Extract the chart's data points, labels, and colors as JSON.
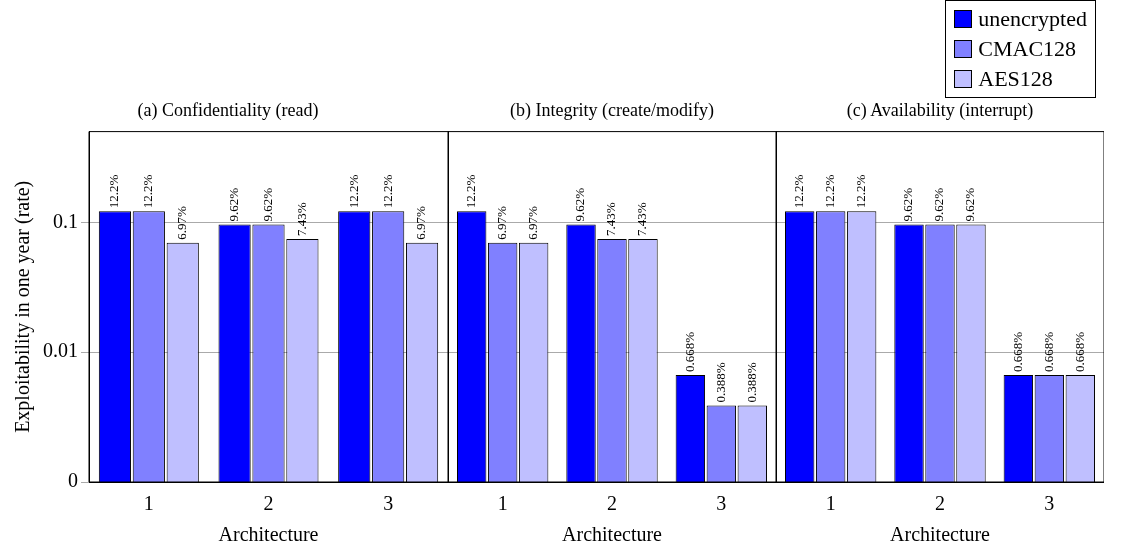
{
  "chart_data": [
    {
      "type": "bar",
      "title": "(a) Confidentiality (read)",
      "xlabel": "Architecture",
      "ylabel": "Exploitability in one year (rate)",
      "categories": [
        "1",
        "2",
        "3"
      ],
      "log": "y",
      "grid": "y",
      "ylim": [
        0.001,
        0.5
      ],
      "yticks": [
        {
          "value": 0.001,
          "label": "0"
        },
        0.01,
        0.1
      ],
      "series": [
        {
          "color": "#0000ff",
          "values": [
            0.122,
            0.0962,
            0.122
          ],
          "value_labels": [
            "12.2%",
            "9.62%",
            "12.2%"
          ]
        },
        {
          "color": "#8080ff",
          "values": [
            0.122,
            0.0962,
            0.122
          ],
          "value_labels": [
            "12.2%",
            "9.62%",
            "12.2%"
          ]
        },
        {
          "color": "#bfbfff",
          "values": [
            0.0697,
            0.0743,
            0.0697
          ],
          "value_labels": [
            "6.97%",
            "7.43%",
            "6.97%"
          ]
        }
      ]
    },
    {
      "type": "bar",
      "title": "(b) Integrity (create/modify)",
      "xlabel": "Architecture",
      "categories": [
        "1",
        "2",
        "3"
      ],
      "log": "y",
      "grid": "y",
      "ylim": [
        0.001,
        0.5
      ],
      "yticks": [
        0.001,
        0.01,
        0.1
      ],
      "tick_labels": "x",
      "series": [
        {
          "color": "#0000ff",
          "values": [
            0.122,
            0.0962,
            0.00668
          ],
          "value_labels": [
            "12.2%",
            "9.62%",
            "0.668%"
          ]
        },
        {
          "color": "#8080ff",
          "values": [
            0.0697,
            0.0743,
            0.00388
          ],
          "value_labels": [
            "6.97%",
            "7.43%",
            "0.388%"
          ]
        },
        {
          "color": "#bfbfff",
          "values": [
            0.0697,
            0.0743,
            0.00388
          ],
          "value_labels": [
            "6.97%",
            "7.43%",
            "0.388%"
          ]
        }
      ]
    },
    {
      "type": "bar",
      "title": "(c) Availability (interrupt)",
      "xlabel": "Architecture",
      "categories": [
        "1",
        "2",
        "3"
      ],
      "log": "y",
      "grid": "y",
      "ylim": [
        0.001,
        0.5
      ],
      "yticks": [
        0.001,
        0.01,
        0.1
      ],
      "tick_labels": "x",
      "legend": "top right",
      "series": [
        {
          "name": "unencrypted",
          "color": "#0000ff",
          "values": [
            0.122,
            0.0962,
            0.00668
          ],
          "value_labels": [
            "12.2%",
            "9.62%",
            "0.668%"
          ]
        },
        {
          "name": "CMAC128",
          "color": "#8080ff",
          "values": [
            0.122,
            0.0962,
            0.00668
          ],
          "value_labels": [
            "12.2%",
            "9.62%",
            "0.668%"
          ]
        },
        {
          "name": "AES128",
          "color": "#bfbfff",
          "values": [
            0.122,
            0.0962,
            0.00668
          ],
          "value_labels": [
            "12.2%",
            "9.62%",
            "0.668%"
          ]
        }
      ]
    }
  ]
}
